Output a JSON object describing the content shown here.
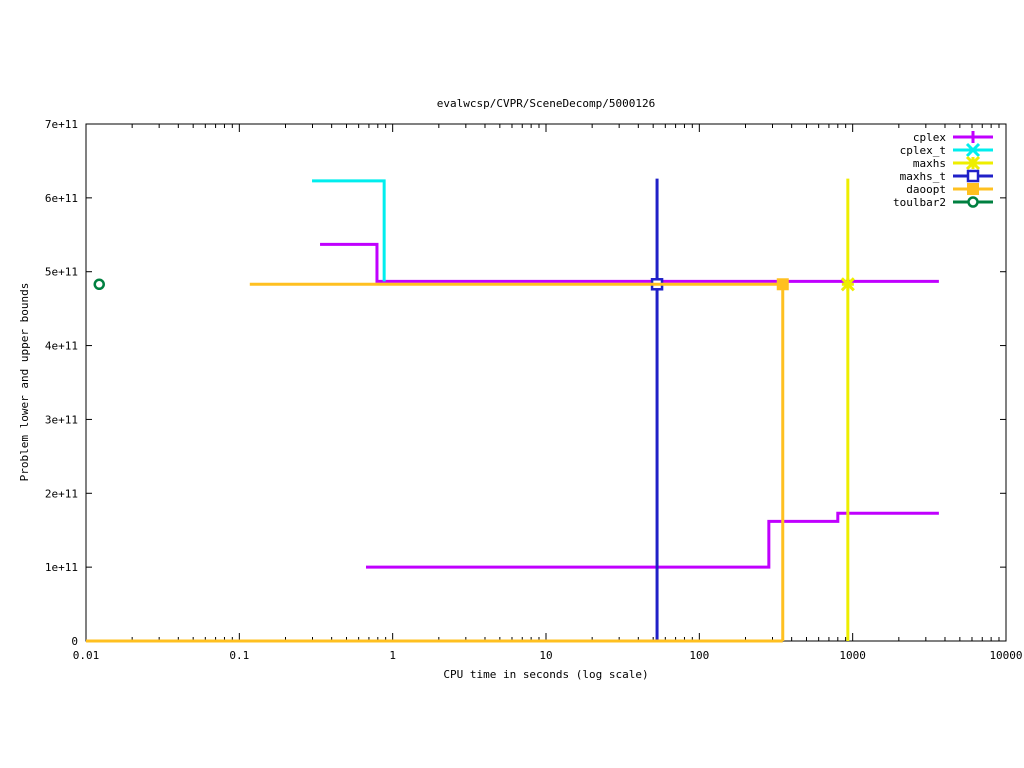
{
  "chart_data": {
    "type": "line",
    "title": "evalwcsp/CVPR/SceneDecomp/5000126",
    "xlabel": "CPU time in seconds (log scale)",
    "ylabel": "Problem lower and upper bounds",
    "x_scale": "log",
    "xlim": [
      0.01,
      10000
    ],
    "ylim": [
      0,
      700000000000
    ],
    "x_ticks": [
      0.01,
      0.1,
      1,
      10,
      100,
      1000,
      10000
    ],
    "x_tick_labels": [
      "0.01",
      "0.1",
      "1",
      "10",
      "100",
      "1000",
      "10000"
    ],
    "y_ticks": [
      0,
      100000000000,
      200000000000,
      300000000000,
      400000000000,
      500000000000,
      600000000000,
      700000000000
    ],
    "y_tick_labels": [
      "0",
      "1e+11",
      "2e+11",
      "3e+11",
      "4e+11",
      "5e+11",
      "6e+11",
      "7e+11"
    ],
    "grid": false,
    "legend_position": "top-right",
    "series": [
      {
        "name": "cplex",
        "color": "#c000ff",
        "marker": "plus",
        "lines": [
          [
            [
              0.336,
              537000000000
            ],
            [
              0.79,
              537000000000
            ],
            [
              0.79,
              487000000000
            ],
            [
              3650,
              487000000000
            ]
          ],
          [
            [
              0.67,
              100000000000
            ],
            [
              284,
              100000000000
            ],
            [
              284,
              162000000000
            ],
            [
              800,
              162000000000
            ],
            [
              800,
              173000000000
            ],
            [
              3650,
              173000000000
            ]
          ]
        ],
        "points": []
      },
      {
        "name": "cplex_t",
        "color": "#00eeee",
        "marker": "cross",
        "lines": [
          [
            [
              0.298,
              623000000000
            ],
            [
              0.88,
              623000000000
            ],
            [
              0.88,
              487000000000
            ]
          ]
        ],
        "points": []
      },
      {
        "name": "maxhs",
        "color": "#eeee00",
        "marker": "star",
        "lines": [
          [
            [
              930,
              626000000000
            ],
            [
              930,
              0
            ]
          ]
        ],
        "points": [
          [
            930,
            483000000000
          ]
        ]
      },
      {
        "name": "maxhs_t",
        "color": "#2020c8",
        "marker": "open-square",
        "lines": [
          [
            [
              53,
              626000000000
            ],
            [
              53,
              0
            ]
          ]
        ],
        "points": [
          [
            53,
            483000000000
          ]
        ]
      },
      {
        "name": "daoopt",
        "color": "#ffc020",
        "marker": "filled-square",
        "lines": [
          [
            [
              0.117,
              483000000000
            ],
            [
              350,
              483000000000
            ],
            [
              350,
              0
            ]
          ],
          [
            [
              0.01,
              0
            ],
            [
              350,
              0
            ]
          ]
        ],
        "points": [
          [
            350,
            483000000000
          ]
        ]
      },
      {
        "name": "toulbar2",
        "color": "#008040",
        "marker": "open-circle",
        "lines": [],
        "points": [
          [
            0.0122,
            483000000000
          ]
        ]
      }
    ]
  }
}
